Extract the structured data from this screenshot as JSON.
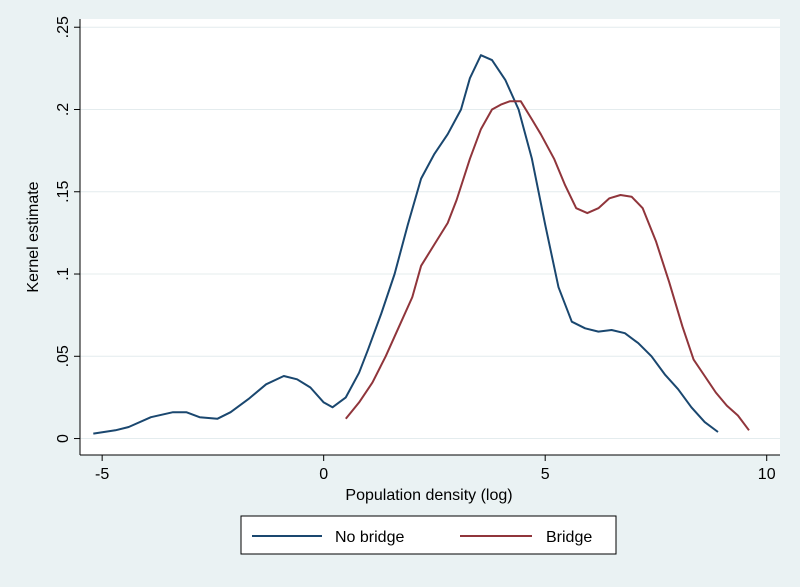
{
  "chart_data": {
    "type": "line",
    "title": "",
    "xlabel": "Population density (log)",
    "ylabel": "Kernel estimate",
    "xlim": [
      -5.5,
      10.3
    ],
    "ylim": [
      -0.01,
      0.255
    ],
    "x_ticks": [
      -5,
      0,
      5,
      10
    ],
    "x_tick_labels": [
      "-5",
      "0",
      "5",
      "10"
    ],
    "y_ticks": [
      0,
      0.05,
      0.1,
      0.15,
      0.2,
      0.25
    ],
    "y_tick_labels": [
      "0",
      ".05",
      ".1",
      ".15",
      ".2",
      ".25"
    ],
    "grid": "horizontal",
    "legend_position": "bottom",
    "series": [
      {
        "name": "No bridge",
        "color": "#1a476f",
        "points": [
          [
            -5.2,
            0.003
          ],
          [
            -4.7,
            0.005
          ],
          [
            -4.4,
            0.007
          ],
          [
            -3.9,
            0.013
          ],
          [
            -3.4,
            0.016
          ],
          [
            -3.1,
            0.016
          ],
          [
            -2.8,
            0.013
          ],
          [
            -2.4,
            0.012
          ],
          [
            -2.1,
            0.016
          ],
          [
            -1.7,
            0.024
          ],
          [
            -1.3,
            0.033
          ],
          [
            -0.9,
            0.038
          ],
          [
            -0.6,
            0.036
          ],
          [
            -0.3,
            0.031
          ],
          [
            0.0,
            0.022
          ],
          [
            0.2,
            0.019
          ],
          [
            0.5,
            0.025
          ],
          [
            0.8,
            0.04
          ],
          [
            1.0,
            0.054
          ],
          [
            1.3,
            0.076
          ],
          [
            1.6,
            0.1
          ],
          [
            1.9,
            0.13
          ],
          [
            2.2,
            0.158
          ],
          [
            2.5,
            0.173
          ],
          [
            2.8,
            0.185
          ],
          [
            3.1,
            0.2
          ],
          [
            3.3,
            0.219
          ],
          [
            3.55,
            0.233
          ],
          [
            3.8,
            0.23
          ],
          [
            4.1,
            0.218
          ],
          [
            4.4,
            0.2
          ],
          [
            4.7,
            0.17
          ],
          [
            5.0,
            0.13
          ],
          [
            5.3,
            0.092
          ],
          [
            5.6,
            0.071
          ],
          [
            5.9,
            0.067
          ],
          [
            6.2,
            0.065
          ],
          [
            6.5,
            0.066
          ],
          [
            6.8,
            0.064
          ],
          [
            7.1,
            0.058
          ],
          [
            7.4,
            0.05
          ],
          [
            7.7,
            0.039
          ],
          [
            8.0,
            0.03
          ],
          [
            8.3,
            0.019
          ],
          [
            8.6,
            0.01
          ],
          [
            8.9,
            0.004
          ]
        ]
      },
      {
        "name": "Bridge",
        "color": "#90353b",
        "points": [
          [
            0.5,
            0.012
          ],
          [
            0.8,
            0.022
          ],
          [
            1.1,
            0.034
          ],
          [
            1.4,
            0.05
          ],
          [
            1.7,
            0.068
          ],
          [
            2.0,
            0.086
          ],
          [
            2.2,
            0.105
          ],
          [
            2.5,
            0.118
          ],
          [
            2.8,
            0.131
          ],
          [
            3.0,
            0.145
          ],
          [
            3.3,
            0.17
          ],
          [
            3.55,
            0.188
          ],
          [
            3.8,
            0.2
          ],
          [
            4.0,
            0.203
          ],
          [
            4.2,
            0.205
          ],
          [
            4.45,
            0.205
          ],
          [
            4.7,
            0.194
          ],
          [
            4.9,
            0.185
          ],
          [
            5.2,
            0.17
          ],
          [
            5.45,
            0.154
          ],
          [
            5.7,
            0.14
          ],
          [
            5.95,
            0.137
          ],
          [
            6.2,
            0.14
          ],
          [
            6.45,
            0.146
          ],
          [
            6.7,
            0.148
          ],
          [
            6.95,
            0.147
          ],
          [
            7.2,
            0.14
          ],
          [
            7.5,
            0.12
          ],
          [
            7.8,
            0.095
          ],
          [
            8.1,
            0.068
          ],
          [
            8.35,
            0.048
          ],
          [
            8.6,
            0.038
          ],
          [
            8.85,
            0.028
          ],
          [
            9.1,
            0.02
          ],
          [
            9.35,
            0.014
          ],
          [
            9.6,
            0.005
          ]
        ]
      }
    ]
  }
}
